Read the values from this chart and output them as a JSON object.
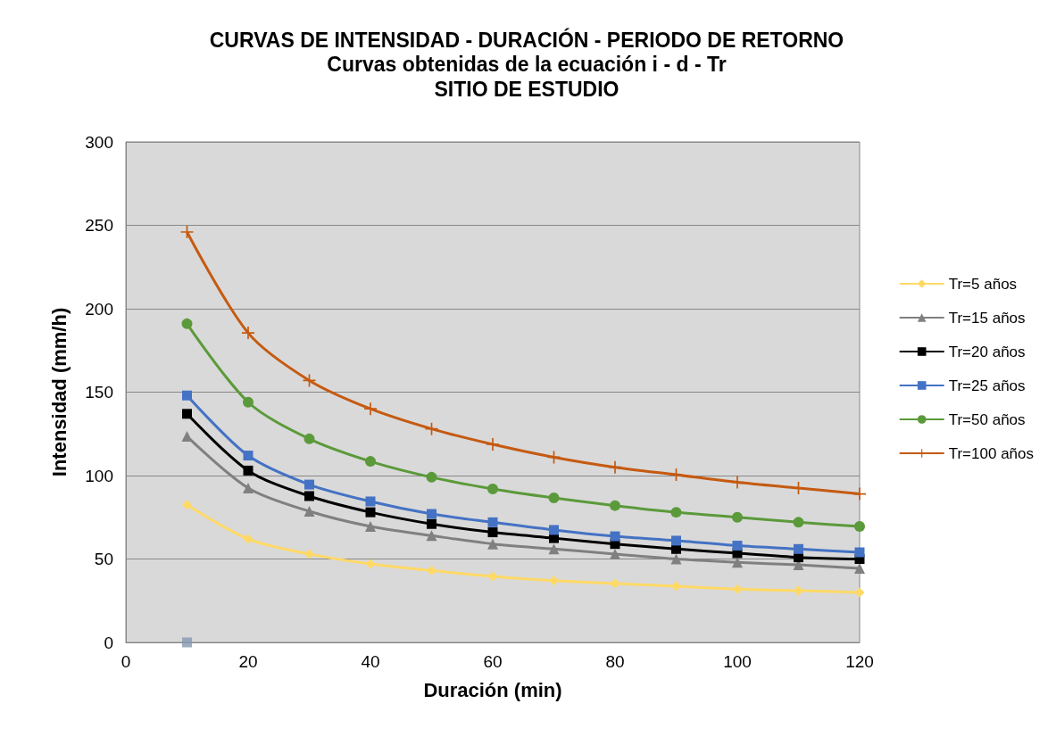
{
  "chart_data": {
    "type": "line",
    "title": "CURVAS DE INTENSIDAD - DURACIÓN - PERIODO DE RETORNO",
    "subtitle": "Curvas obtenidas de la ecuación i - d - Tr\nSITIO DE ESTUDIO",
    "xlabel": "Duración (min)",
    "ylabel": "Intensidad (mm/h)",
    "x": [
      10,
      20,
      30,
      40,
      50,
      60,
      70,
      80,
      90,
      100,
      110,
      120
    ],
    "series": [
      {
        "name": "Tr=5 años",
        "color": "#ffd966",
        "marker": "diamond",
        "values": [
          82.5,
          62,
          53,
          47,
          43,
          39.6,
          37,
          35.3,
          33.7,
          32,
          31,
          30
        ]
      },
      {
        "name": "Tr=15 años",
        "color": "#808080",
        "marker": "triangle",
        "values": [
          123.5,
          92.5,
          78.6,
          69.5,
          64,
          59,
          56,
          53,
          50,
          48,
          46.5,
          44.4
        ]
      },
      {
        "name": "Tr=20 años",
        "color": "#000000",
        "marker": "square",
        "values": [
          137,
          103,
          87.7,
          78,
          71,
          66,
          62.5,
          59,
          56,
          53.5,
          51,
          50
        ]
      },
      {
        "name": "Tr=25 años",
        "color": "#4472c4",
        "marker": "square",
        "values": [
          148,
          112,
          94.6,
          84.5,
          77,
          72,
          67.4,
          63.6,
          61,
          58,
          56,
          54
        ]
      },
      {
        "name": "Tr=50 años",
        "color": "#5b9a3a",
        "marker": "circle",
        "values": [
          191,
          144,
          122,
          108.5,
          99,
          92,
          86.6,
          82,
          78,
          75,
          72,
          69.5
        ]
      },
      {
        "name": "Tr=100 años",
        "color": "#c55a11",
        "marker": "cross",
        "values": [
          246,
          185.5,
          157,
          140,
          128,
          118.7,
          111,
          105,
          100.5,
          96,
          92.5,
          89
        ]
      },
      {
        "type": "scatter",
        "color": "#8497b0",
        "marker": "square",
        "x": [
          10
        ],
        "values": [
          0
        ]
      }
    ],
    "xlim": [
      0,
      120
    ],
    "xticks": [
      0,
      20,
      40,
      60,
      80,
      100,
      120
    ],
    "ylim": [
      0,
      300
    ],
    "yticks": [
      0,
      50,
      100,
      150,
      200,
      250,
      300
    ],
    "grid": "y",
    "legend": "right"
  }
}
